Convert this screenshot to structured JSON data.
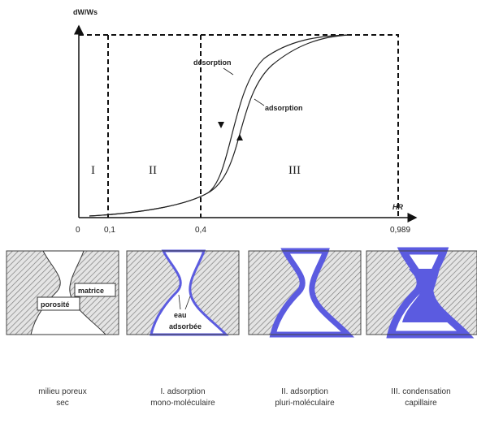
{
  "graph": {
    "y_label": "dW/Ws",
    "x_label": "HR",
    "ticks": [
      "0",
      "0,1",
      "0,4",
      "0,989"
    ],
    "zones": [
      "I",
      "II",
      "III"
    ],
    "curves": {
      "desorption": "désorption",
      "adsorption": "adsorption"
    }
  },
  "panels": [
    {
      "labels": [
        "matrice",
        "porosité"
      ],
      "caption": [
        "milieu poreux",
        "sec"
      ]
    },
    {
      "labels": [
        "eau",
        "adsorbée"
      ],
      "caption": [
        "I. adsorption",
        "mono-moléculaire"
      ]
    },
    {
      "caption": [
        "II. adsorption",
        "pluri-moléculaire"
      ]
    },
    {
      "caption": [
        "III. condensation",
        "capillaire"
      ]
    }
  ]
}
